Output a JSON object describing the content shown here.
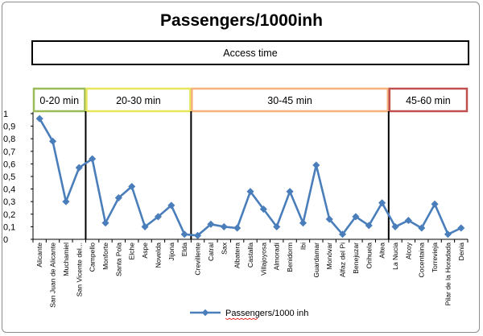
{
  "chart_data": {
    "type": "line",
    "title": "Passengers/1000inh",
    "banner": "Access time",
    "bands": [
      {
        "label": "0-20 min",
        "color": "#9bbb59",
        "from": 0,
        "to": 4
      },
      {
        "label": "20-30 min",
        "color": "#e6e65a",
        "from": 4,
        "to": 12
      },
      {
        "label": "30-45 min",
        "color": "#f5b27d",
        "from": 12,
        "to": 27
      },
      {
        "label": "45-60 min",
        "color": "#c0504d",
        "from": 27,
        "to": 34
      }
    ],
    "categories": [
      "Alicante",
      "San Juan de Alicante",
      "Muchamiel",
      "San Vicente del...",
      "Campello",
      "Monforte",
      "Santa Pola",
      "Elche",
      "Aspe",
      "Novelda",
      "Jijona",
      "Elda",
      "Crevillente",
      "Catral",
      "Sax",
      "Albatera",
      "Castalla",
      "Villajoyosa",
      "Almoradí",
      "Benidorm",
      "Ibi",
      "Guardamar",
      "Monóvar",
      "Alfaz del Pi",
      "Benejuzar",
      "Orihuela",
      "Altea",
      "La Nucia",
      "Alcoy",
      "Cocentaina",
      "Torrevieja",
      "Pilar de la Horadada",
      "Denia"
    ],
    "series": [
      {
        "name": "Passengers/1000 inh",
        "color": "#4a7ebb",
        "values": [
          0.96,
          0.78,
          0.3,
          0.57,
          0.64,
          0.13,
          0.33,
          0.42,
          0.1,
          0.18,
          0.27,
          0.04,
          0.03,
          0.12,
          0.1,
          0.09,
          0.38,
          0.24,
          0.1,
          0.38,
          0.13,
          0.59,
          0.16,
          0.04,
          0.18,
          0.11,
          0.29,
          0.1,
          0.15,
          0.09,
          0.28,
          0.04,
          0.09
        ]
      }
    ],
    "ylim": [
      0,
      1
    ],
    "yticks": [
      "0",
      "0,1",
      "0,2",
      "0,3",
      "0,4",
      "0,5",
      "0,6",
      "0,7",
      "0,8",
      "0,9",
      "1"
    ],
    "grid": false,
    "legend_position": "bottom"
  }
}
